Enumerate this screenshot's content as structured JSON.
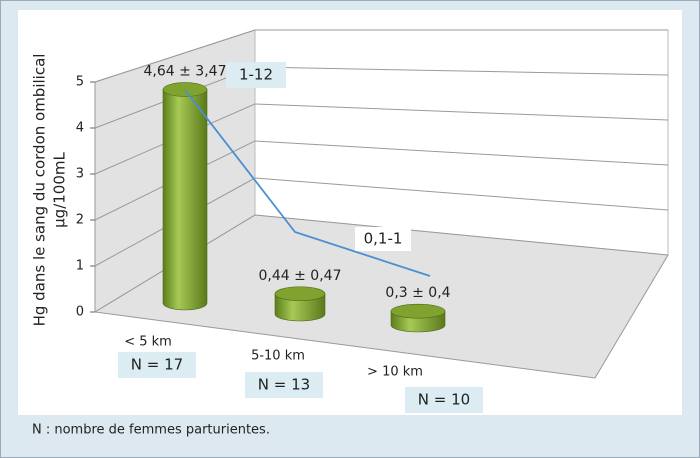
{
  "chart_data": {
    "type": "bar",
    "y_label": [
      "Hg dans le sang du cordon ombilical",
      "µg/100mL"
    ],
    "categories": [
      "< 5 km",
      "5-10 km",
      "> 10 km"
    ],
    "values": [
      4.64,
      0.44,
      0.3
    ],
    "value_labels": [
      "4,64 ± 3,47",
      "0,44 ± 0,47",
      "0,3 ± 0,4"
    ],
    "ranges": [
      "1-12",
      "0,1-1"
    ],
    "n_labels": [
      "N = 17",
      "N = 13",
      "N = 10"
    ],
    "color": "#7fa32e",
    "ylim": [
      0,
      5
    ],
    "yticks": [
      0,
      1,
      2,
      3,
      4,
      5
    ],
    "grid": true,
    "footnote": "N : nombre de femmes parturientes."
  }
}
